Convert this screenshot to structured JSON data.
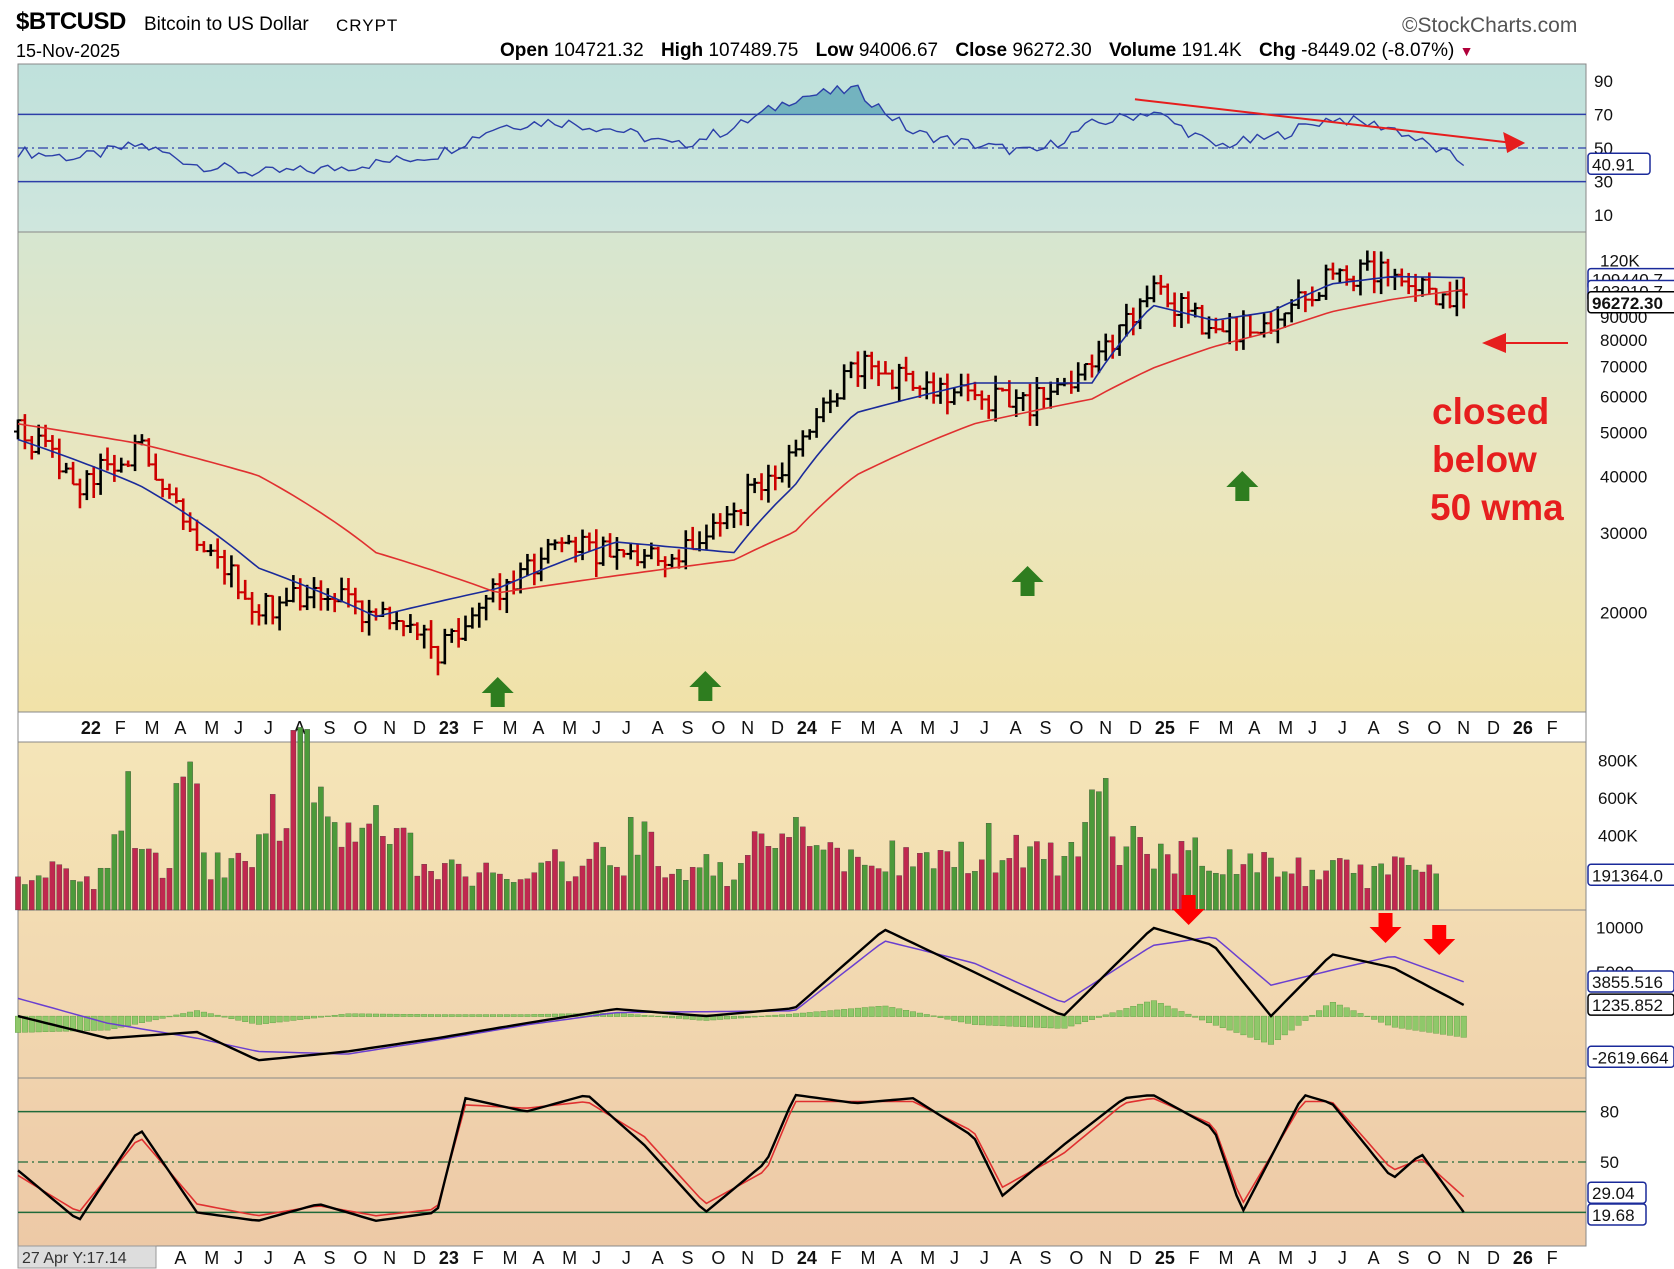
{
  "header": {
    "symbol": "$BTCUSD",
    "name": "Bitcoin to US Dollar",
    "type": "CRYPT",
    "brand": "©StockCharts.com",
    "date": "15-Nov-2025",
    "open_label": "Open",
    "open": "104721.32",
    "high_label": "High",
    "high": "107489.75",
    "low_label": "Low",
    "low": "94006.67",
    "close_label": "Close",
    "close": "96272.30",
    "volume_label": "Volume",
    "volume": "191.4K",
    "chg_label": "Chg",
    "chg": "-8449.02 (-8.07%)"
  },
  "footer_readout": "27 Apr Y:17.14",
  "colors": {
    "up": "#000000",
    "down": "#cc0000",
    "sma_blue": "#1a2a9a",
    "sma_red": "#e03030",
    "vol_up": "#4c9a3a",
    "vol_down": "#c0284f",
    "annot": "#e61e1e",
    "arrow_green": "#2e7d1f"
  },
  "chart_data": [
    {
      "type": "line",
      "panel": "RSI",
      "yticks": [
        10,
        30,
        50,
        70,
        90
      ],
      "ylim": [
        0,
        100
      ],
      "overbought": 70,
      "oversold": 30,
      "midline": 50,
      "last_value_label": "40.91",
      "series": [
        {
          "x": [
            2021.83,
            2022.0,
            2022.17,
            2022.33,
            2022.5,
            2022.67,
            2022.83,
            2023.0,
            2023.17,
            2023.33,
            2023.5,
            2023.67,
            2023.83,
            2024.0,
            2024.17,
            2024.33,
            2024.5,
            2024.67,
            2024.83,
            2025.0,
            2025.17,
            2025.33,
            2025.5,
            2025.67,
            2025.87
          ],
          "y": [
            48,
            44,
            52,
            40,
            35,
            37,
            41,
            46,
            63,
            66,
            61,
            51,
            62,
            80,
            85,
            59,
            52,
            47,
            64,
            72,
            51,
            56,
            68,
            62,
            41
          ]
        }
      ],
      "trendline": {
        "x": [
          2024.95,
          2026.04
        ],
        "y": [
          79,
          53
        ]
      }
    },
    {
      "type": "bar",
      "panel": "Price",
      "ylim": [
        12000,
        138000
      ],
      "yticks": [
        "20000",
        "30000",
        "40000",
        "50000",
        "60000",
        "70000",
        "80000",
        "90000",
        "120K"
      ],
      "ytick_values": [
        20000,
        30000,
        40000,
        50000,
        60000,
        70000,
        80000,
        90000,
        120000
      ],
      "right_labels": [
        "109440.7",
        "103010.7",
        "96272.30"
      ],
      "x_month_labels": [
        "22",
        "F",
        "M",
        "A",
        "M",
        "J",
        "J",
        "A",
        "S",
        "O",
        "N",
        "D",
        "23",
        "F",
        "M",
        "A",
        "M",
        "J",
        "J",
        "A",
        "S",
        "O",
        "N",
        "D",
        "24",
        "F",
        "M",
        "A",
        "M",
        "J",
        "J",
        "A",
        "S",
        "O",
        "N",
        "D",
        "25",
        "F",
        "M",
        "A",
        "M",
        "J",
        "J",
        "A",
        "S",
        "O",
        "N",
        "D",
        "26",
        "F"
      ],
      "price": {
        "x": [
          2021.83,
          2022.0,
          2022.17,
          2022.33,
          2022.5,
          2022.67,
          2022.83,
          2023.0,
          2023.17,
          2023.33,
          2023.5,
          2023.67,
          2023.83,
          2024.0,
          2024.17,
          2024.33,
          2024.5,
          2024.67,
          2024.83,
          2025.0,
          2025.17,
          2025.33,
          2025.5,
          2025.67,
          2025.87
        ],
        "y": [
          50000,
          38000,
          46000,
          30000,
          20000,
          23000,
          19500,
          16500,
          22000,
          28000,
          27000,
          26000,
          34000,
          43000,
          70000,
          65000,
          60000,
          58000,
          68000,
          100000,
          84000,
          85000,
          110000,
          112000,
          96000
        ]
      },
      "series": [
        {
          "name": "",
          "x": [
            2021.83,
            2022.17,
            2022.5,
            2022.83,
            2023.17,
            2023.5,
            2023.83,
            2024.0,
            2024.17,
            2024.5,
            2024.83,
            2025.0,
            2025.17,
            2025.33,
            2025.5,
            2025.67,
            2025.87
          ],
          "y": [
            48000,
            38000,
            25000,
            19500,
            22500,
            28500,
            27000,
            38000,
            55000,
            64000,
            64000,
            95000,
            88000,
            92000,
            106000,
            110000,
            109440.7
          ]
        },
        {
          "name": "",
          "x": [
            2021.83,
            2022.17,
            2022.5,
            2022.83,
            2023.17,
            2023.5,
            2023.83,
            2024.0,
            2024.17,
            2024.5,
            2024.83,
            2025.0,
            2025.17,
            2025.33,
            2025.5,
            2025.67,
            2025.87
          ],
          "y": [
            52000,
            47000,
            40000,
            27000,
            22000,
            24000,
            26000,
            30000,
            40000,
            52000,
            59000,
            69000,
            77000,
            83000,
            92000,
            98000,
            103010.7
          ]
        }
      ],
      "annotations": [
        {
          "text": [
            "closed",
            "below",
            "50 wma"
          ]
        }
      ]
    },
    {
      "type": "bar",
      "panel": "Volume",
      "yticks": [
        "400K",
        "600K",
        "800K"
      ],
      "ytick_values": [
        400000,
        600000,
        800000
      ],
      "ylim": [
        0,
        900000
      ],
      "last_value_label": "191364.0",
      "values": [
        200000,
        260000,
        180000,
        600000,
        280000,
        620000,
        240000,
        360000,
        500000,
        800000,
        430000,
        500000,
        460000,
        260000,
        230000,
        220000,
        180000,
        250000,
        220000,
        320000,
        420000,
        260000,
        240000,
        220000,
        340000,
        460000,
        340000,
        280000,
        300000,
        260000,
        320000,
        300000,
        360000,
        300000,
        280000,
        560000,
        420000,
        360000,
        300000,
        250000,
        260000,
        240000,
        230000,
        220000,
        200000,
        250000,
        190000
      ]
    },
    {
      "type": "line",
      "panel": "MACD",
      "yticks": [
        "-5000",
        "5000",
        "10000"
      ],
      "ytick_values": [
        -5000,
        5000,
        10000
      ],
      "ylim": [
        -7000,
        12000
      ],
      "last_value_labels": [
        "3855.516",
        "1235.852",
        "-2619.664"
      ],
      "series": [
        {
          "name": "",
          "x": [
            2021.83,
            2022.08,
            2022.33,
            2022.5,
            2022.75,
            2023.0,
            2023.25,
            2023.5,
            2023.75,
            2024.0,
            2024.25,
            2024.5,
            2024.75,
            2025.0,
            2025.17,
            2025.33,
            2025.5,
            2025.67,
            2025.87
          ],
          "y": [
            0,
            -2500,
            -1800,
            -5000,
            -4000,
            -2500,
            -800,
            800,
            0,
            900,
            9800,
            5000,
            0,
            10000,
            8000,
            0,
            7000,
            5500,
            1235.852
          ]
        },
        {
          "name": "",
          "x": [
            2021.83,
            2022.08,
            2022.33,
            2022.5,
            2022.75,
            2023.0,
            2023.25,
            2023.5,
            2023.75,
            2024.0,
            2024.25,
            2024.5,
            2024.75,
            2025.0,
            2025.17,
            2025.33,
            2025.5,
            2025.67,
            2025.87
          ],
          "y": [
            2000,
            -800,
            -2500,
            -4000,
            -4300,
            -2700,
            -1000,
            400,
            500,
            600,
            8500,
            6000,
            1500,
            8000,
            9000,
            3500,
            5200,
            6800,
            3855.516
          ]
        }
      ]
    },
    {
      "type": "line",
      "panel": "Stochastic",
      "yticks": [
        "20",
        "50",
        "80"
      ],
      "ytick_values": [
        20,
        50,
        80
      ],
      "ylim": [
        0,
        100
      ],
      "last_value_labels": [
        "29.04",
        "19.68"
      ],
      "series": [
        {
          "name": "",
          "x": [
            2021.83,
            2022.0,
            2022.17,
            2022.33,
            2022.5,
            2022.67,
            2022.83,
            2023.0,
            2023.08,
            2023.25,
            2023.42,
            2023.58,
            2023.75,
            2023.92,
            2024.0,
            2024.17,
            2024.33,
            2024.5,
            2024.58,
            2024.75,
            2024.92,
            2025.0,
            2025.17,
            2025.25,
            2025.42,
            2025.5,
            2025.67,
            2025.75,
            2025.87
          ],
          "y": [
            45,
            15,
            70,
            20,
            15,
            25,
            15,
            20,
            88,
            80,
            90,
            60,
            20,
            50,
            90,
            85,
            88,
            65,
            30,
            60,
            88,
            90,
            70,
            20,
            90,
            85,
            40,
            55,
            19.68
          ]
        },
        {
          "name": "",
          "x": [
            2021.83,
            2022.0,
            2022.17,
            2022.33,
            2022.5,
            2022.67,
            2022.83,
            2023.0,
            2023.08,
            2023.25,
            2023.42,
            2023.58,
            2023.75,
            2023.92,
            2024.0,
            2024.17,
            2024.33,
            2024.5,
            2024.58,
            2024.75,
            2024.92,
            2025.0,
            2025.17,
            2025.25,
            2025.42,
            2025.5,
            2025.67,
            2025.75,
            2025.87
          ],
          "y": [
            42,
            20,
            65,
            25,
            18,
            24,
            18,
            22,
            84,
            82,
            86,
            65,
            25,
            45,
            86,
            86,
            86,
            68,
            35,
            55,
            85,
            88,
            72,
            25,
            86,
            86,
            45,
            52,
            29.04
          ]
        }
      ]
    }
  ]
}
